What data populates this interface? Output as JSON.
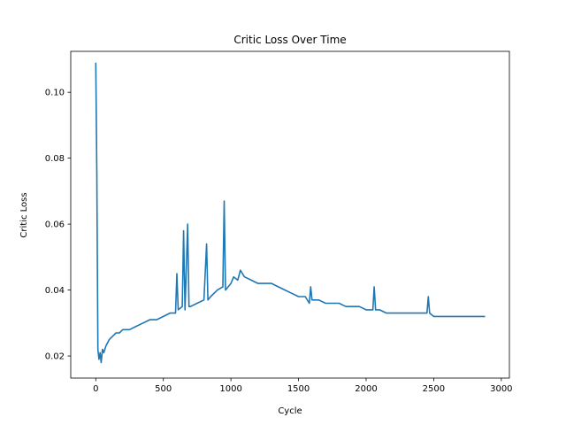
{
  "chart_data": {
    "type": "line",
    "title": "Critic Loss Over Time",
    "xlabel": "Cycle",
    "ylabel": "Critic Loss",
    "xlim": [
      -185,
      3060
    ],
    "ylim": [
      0.0133,
      0.1124
    ],
    "xticks": [
      0,
      500,
      1000,
      1500,
      2000,
      2500,
      3000
    ],
    "yticks": [
      0.02,
      0.04,
      0.06,
      0.08,
      0.1
    ],
    "xtick_labels": [
      "0",
      "500",
      "1000",
      "1500",
      "2000",
      "2500",
      "3000"
    ],
    "ytick_labels": [
      "0.02",
      "0.04",
      "0.06",
      "0.08",
      "0.10"
    ],
    "grid": false,
    "legend": "none",
    "series": [
      {
        "color": "#1f77b4",
        "x": [
          0,
          8,
          16,
          24,
          32,
          40,
          50,
          60,
          75,
          100,
          125,
          150,
          175,
          200,
          250,
          300,
          350,
          400,
          450,
          500,
          550,
          590,
          600,
          610,
          640,
          650,
          660,
          680,
          690,
          700,
          750,
          800,
          820,
          830,
          850,
          900,
          940,
          950,
          960,
          1000,
          1020,
          1050,
          1070,
          1100,
          1150,
          1200,
          1250,
          1300,
          1350,
          1400,
          1450,
          1500,
          1550,
          1580,
          1590,
          1600,
          1650,
          1700,
          1750,
          1800,
          1850,
          1900,
          1950,
          2000,
          2050,
          2060,
          2070,
          2100,
          2150,
          2200,
          2250,
          2300,
          2350,
          2400,
          2450,
          2460,
          2470,
          2500,
          2550,
          2600,
          2650,
          2700,
          2750,
          2800,
          2850,
          2880
        ],
        "y": [
          0.109,
          0.075,
          0.022,
          0.019,
          0.021,
          0.018,
          0.022,
          0.021,
          0.023,
          0.025,
          0.026,
          0.027,
          0.027,
          0.028,
          0.028,
          0.029,
          0.03,
          0.031,
          0.031,
          0.032,
          0.033,
          0.033,
          0.045,
          0.034,
          0.035,
          0.058,
          0.034,
          0.06,
          0.035,
          0.035,
          0.036,
          0.037,
          0.054,
          0.037,
          0.038,
          0.04,
          0.041,
          0.067,
          0.04,
          0.042,
          0.044,
          0.043,
          0.046,
          0.044,
          0.043,
          0.042,
          0.042,
          0.042,
          0.041,
          0.04,
          0.039,
          0.038,
          0.038,
          0.036,
          0.041,
          0.037,
          0.037,
          0.036,
          0.036,
          0.036,
          0.035,
          0.035,
          0.035,
          0.034,
          0.034,
          0.041,
          0.034,
          0.034,
          0.033,
          0.033,
          0.033,
          0.033,
          0.033,
          0.033,
          0.033,
          0.038,
          0.033,
          0.032,
          0.032,
          0.032,
          0.032,
          0.032,
          0.032,
          0.032,
          0.032,
          0.032
        ]
      }
    ]
  }
}
